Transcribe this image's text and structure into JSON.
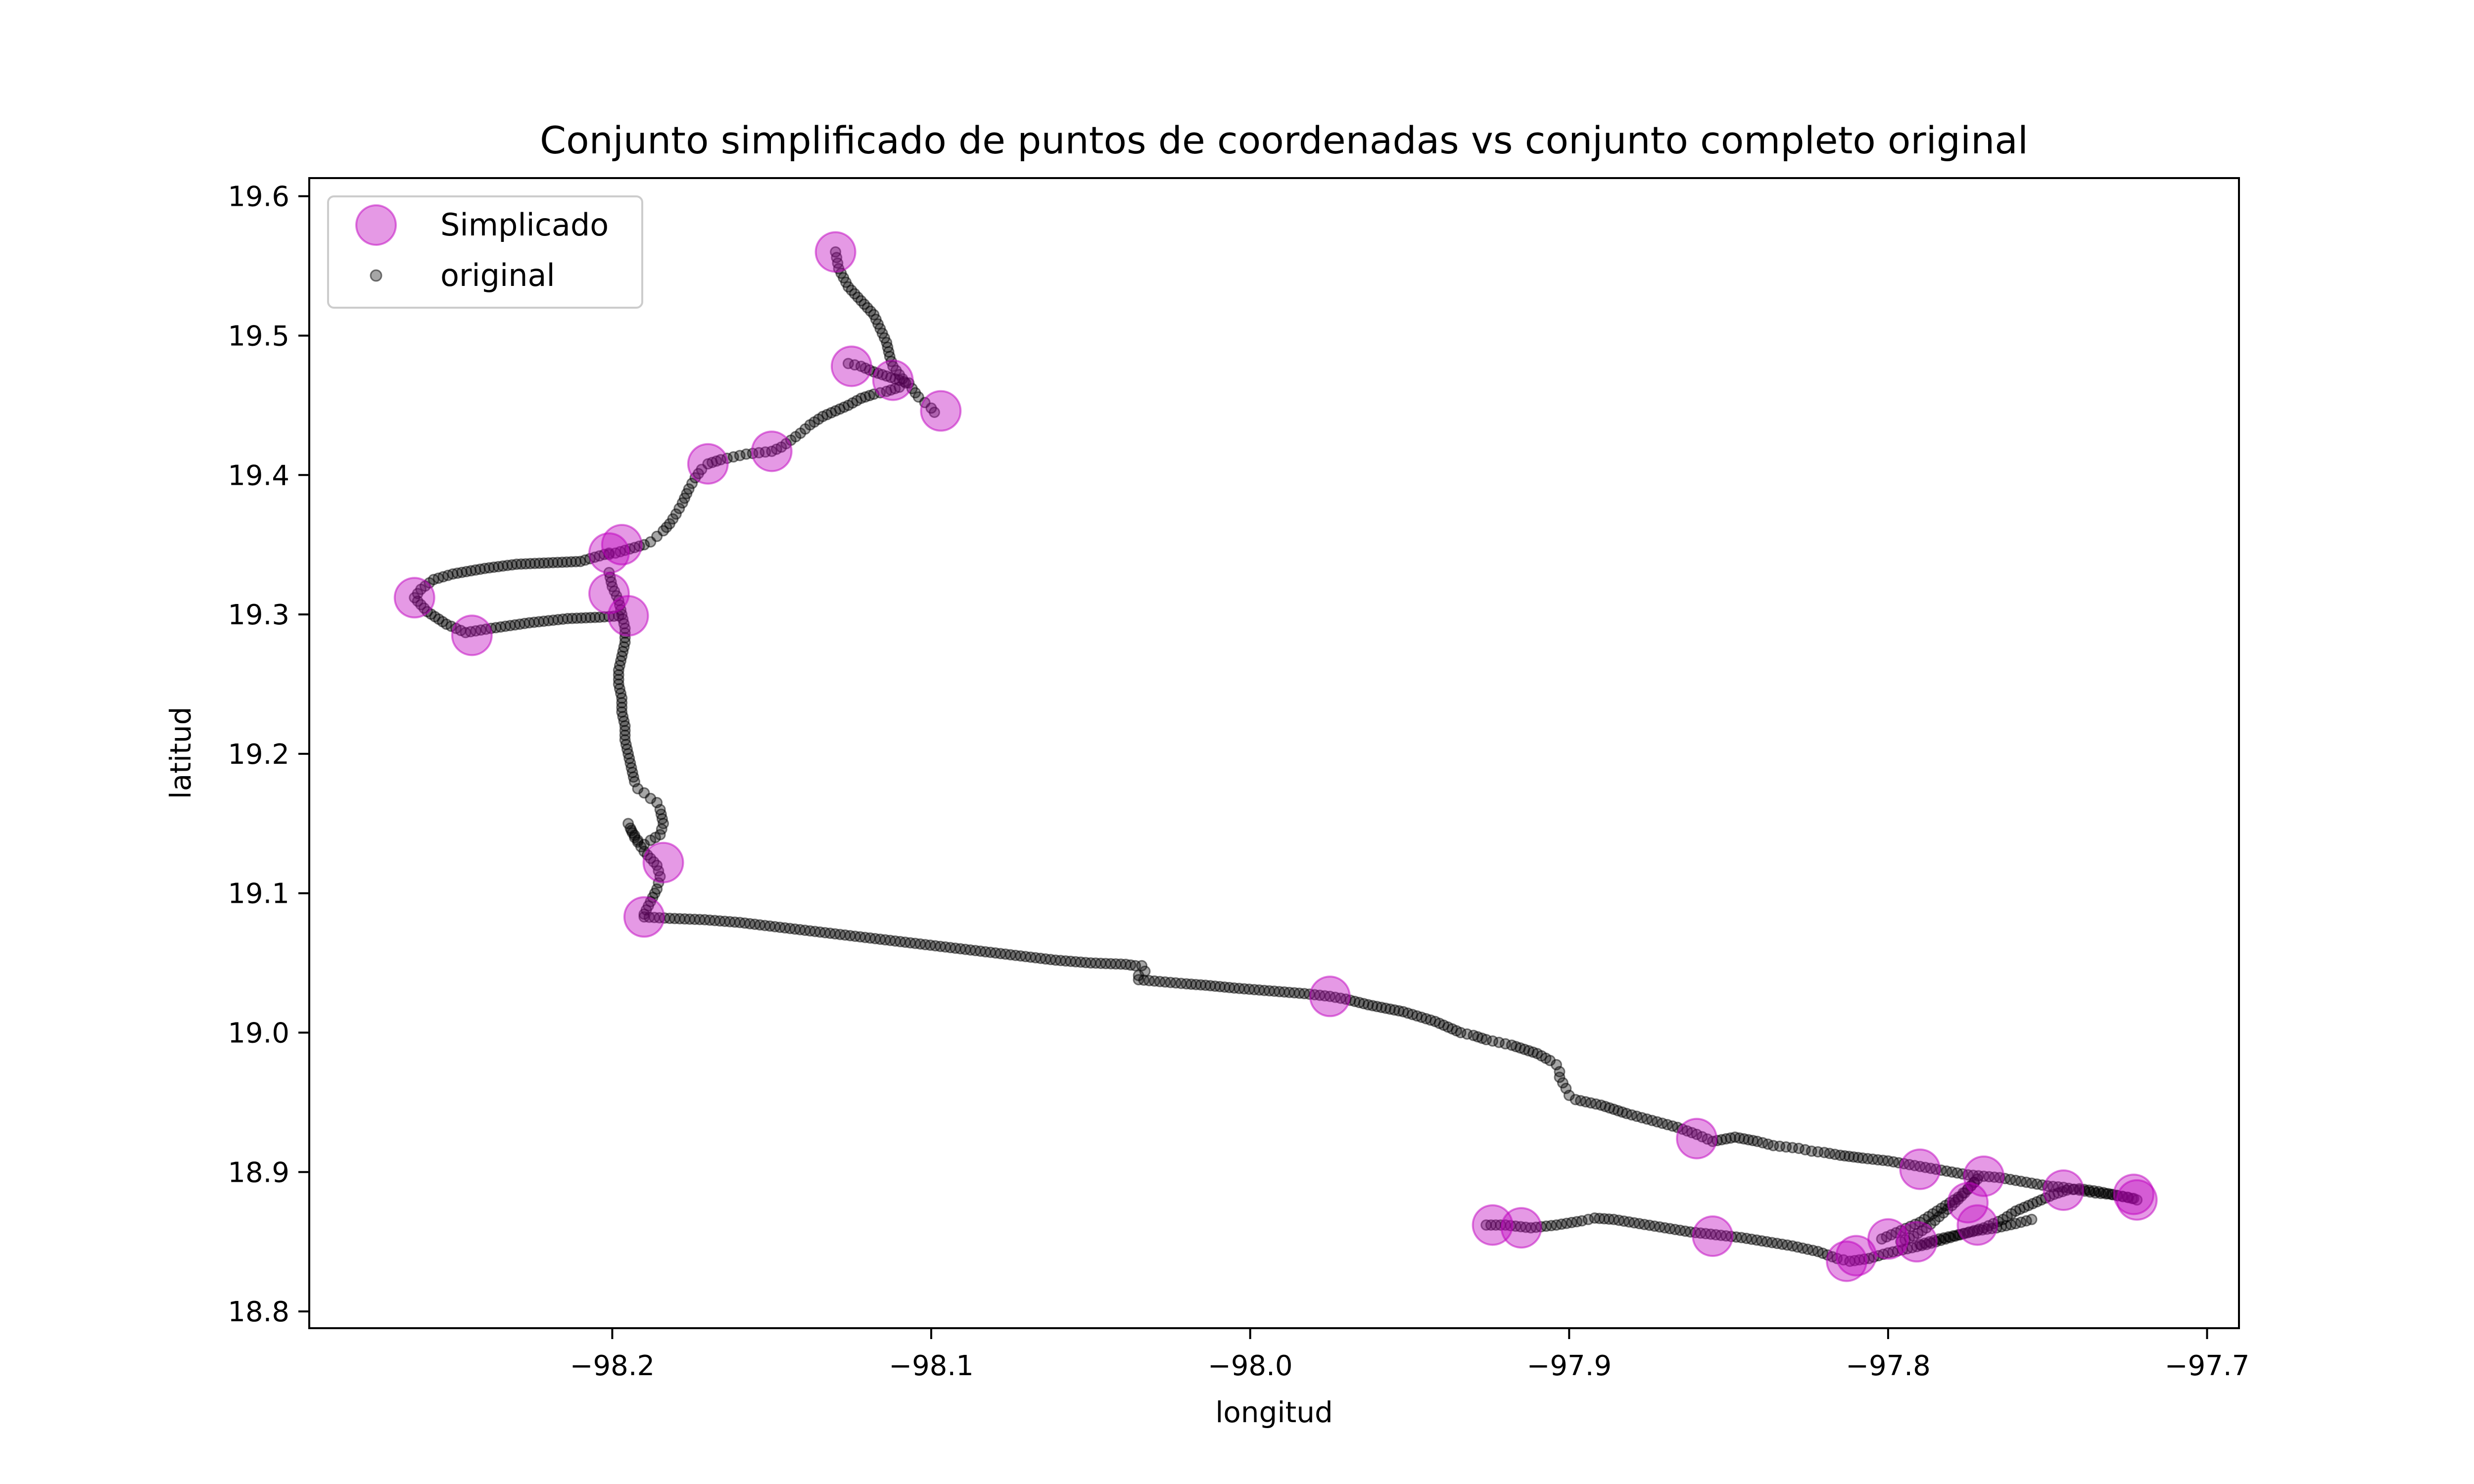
{
  "chart_data": {
    "type": "scatter",
    "title": "Conjunto simplificado de puntos de coordenadas vs conjunto completo original",
    "xlabel": "longitud",
    "ylabel": "latitud",
    "xlim": [
      -98.295,
      -97.69
    ],
    "ylim": [
      18.788,
      19.613
    ],
    "x_ticks": [
      -98.2,
      -98.1,
      -98.0,
      -97.9,
      -97.8,
      -97.7
    ],
    "x_tick_labels": [
      "−98.2",
      "−98.1",
      "−98.0",
      "−97.9",
      "−97.8",
      "−97.7"
    ],
    "y_ticks": [
      18.8,
      18.9,
      19.0,
      19.1,
      19.2,
      19.3,
      19.4,
      19.5,
      19.6
    ],
    "y_tick_labels": [
      "18.8",
      "18.9",
      "19.0",
      "19.1",
      "19.2",
      "19.3",
      "19.4",
      "19.5",
      "19.6"
    ],
    "legend_position": "top-left",
    "colors": {
      "simplified": "#bf00bf",
      "original": "#000000"
    },
    "series": [
      {
        "name": "Simplicado",
        "marker": "large-circle",
        "x": [
          -98.13,
          -98.125,
          -98.112,
          -98.097,
          -98.15,
          -98.17,
          -98.197,
          -98.201,
          -98.262,
          -98.201,
          -98.195,
          -98.244,
          -98.184,
          -98.19,
          -97.975,
          -97.924,
          -97.915,
          -97.855,
          -97.86,
          -97.813,
          -97.81,
          -97.8,
          -97.791,
          -97.79,
          -97.775,
          -97.772,
          -97.77,
          -97.745,
          -97.722,
          -97.723
        ],
        "y": [
          19.56,
          19.478,
          19.468,
          19.446,
          19.417,
          19.408,
          19.35,
          19.344,
          19.312,
          19.315,
          19.299,
          19.285,
          19.122,
          19.083,
          19.026,
          18.862,
          18.86,
          18.854,
          18.924,
          18.836,
          18.84,
          18.852,
          18.85,
          18.902,
          18.878,
          18.862,
          18.897,
          18.887,
          18.88,
          18.884
        ]
      },
      {
        "name": "original",
        "marker": "small-dot",
        "segments": [
          {
            "x": [
              -98.13,
              -98.129,
              -98.126,
              -98.122,
              -98.118,
              -98.116,
              -98.114,
              -98.113,
              -98.112,
              -98.11,
              -98.108,
              -98.106,
              -98.104,
              -98.102,
              -98.1,
              -98.099
            ],
            "y": [
              19.56,
              19.548,
              19.535,
              19.525,
              19.515,
              19.505,
              19.495,
              19.485,
              19.478,
              19.472,
              19.466,
              19.462,
              19.456,
              19.452,
              19.448,
              19.445
            ]
          },
          {
            "x": [
              -98.126,
              -98.122,
              -98.118,
              -98.114,
              -98.11,
              -98.107
            ],
            "y": [
              19.48,
              19.478,
              19.474,
              19.471,
              19.468,
              19.466
            ]
          },
          {
            "x": [
              -98.11,
              -98.114,
              -98.118,
              -98.122,
              -98.126,
              -98.13,
              -98.134,
              -98.138,
              -98.141,
              -98.144,
              -98.147,
              -98.15,
              -98.154,
              -98.158,
              -98.162,
              -98.166,
              -98.17,
              -98.172,
              -98.174,
              -98.176,
              -98.178,
              -98.18,
              -98.182,
              -98.184,
              -98.186,
              -98.188,
              -98.19,
              -98.193,
              -98.196,
              -98.199,
              -98.201
            ],
            "y": [
              19.463,
              19.46,
              19.458,
              19.455,
              19.45,
              19.446,
              19.442,
              19.436,
              19.43,
              19.425,
              19.42,
              19.417,
              19.416,
              19.415,
              19.413,
              19.411,
              19.408,
              19.404,
              19.398,
              19.39,
              19.38,
              19.372,
              19.365,
              19.36,
              19.356,
              19.352,
              19.35,
              19.348,
              19.346,
              19.344,
              19.343
            ]
          },
          {
            "x": [
              -98.201,
              -98.2,
              -98.198,
              -98.197,
              -98.196,
              -98.196,
              -98.197,
              -98.198,
              -98.198,
              -98.197,
              -98.197,
              -98.196,
              -98.196,
              -98.195,
              -98.194,
              -98.193,
              -98.192,
              -98.19,
              -98.188,
              -98.186,
              -98.185,
              -98.184,
              -98.185,
              -98.188,
              -98.19,
              -98.192,
              -98.194,
              -98.195,
              -98.193,
              -98.19,
              -98.188,
              -98.186,
              -98.185,
              -98.186,
              -98.188,
              -98.19
            ],
            "y": [
              19.33,
              19.32,
              19.31,
              19.3,
              19.29,
              19.28,
              19.27,
              19.26,
              19.25,
              19.24,
              19.23,
              19.22,
              19.21,
              19.2,
              19.19,
              19.18,
              19.175,
              19.172,
              19.168,
              19.165,
              19.16,
              19.15,
              19.142,
              19.138,
              19.135,
              19.138,
              19.145,
              19.15,
              19.14,
              19.13,
              19.125,
              19.12,
              19.112,
              19.103,
              19.094,
              19.085
            ]
          },
          {
            "x": [
              -98.201,
              -98.21,
              -98.22,
              -98.23,
              -98.24,
              -98.25,
              -98.256,
              -98.26,
              -98.262,
              -98.258,
              -98.252,
              -98.246,
              -98.238,
              -98.226,
              -98.214,
              -98.204,
              -98.198
            ],
            "y": [
              19.344,
              19.338,
              19.337,
              19.336,
              19.333,
              19.329,
              19.325,
              19.318,
              19.312,
              19.302,
              19.293,
              19.287,
              19.29,
              19.294,
              19.297,
              19.298,
              19.299
            ]
          },
          {
            "x": [
              -98.19,
              -98.182,
              -98.171,
              -98.16,
              -98.149,
              -98.138,
              -98.127,
              -98.116,
              -98.105,
              -98.094,
              -98.083,
              -98.072,
              -98.061,
              -98.05,
              -98.039,
              -98.036,
              -98.034,
              -98.033,
              -98.035,
              -98.035,
              -98.03,
              -98.025,
              -98.02,
              -98.014,
              -98.005,
              -97.994,
              -97.983,
              -97.975,
              -97.97,
              -97.963,
              -97.952,
              -97.942,
              -97.938,
              -97.934,
              -97.93,
              -97.926,
              -97.922,
              -97.918,
              -97.914,
              -97.91,
              -97.906,
              -97.904,
              -97.903,
              -97.903,
              -97.902,
              -97.901,
              -97.9,
              -97.898,
              -97.89,
              -97.882,
              -97.874,
              -97.866,
              -97.86,
              -97.855,
              -97.848,
              -97.841,
              -97.836,
              -97.832,
              -97.828,
              -97.824,
              -97.82,
              -97.815,
              -97.808,
              -97.8,
              -97.795,
              -97.79,
              -97.785,
              -97.78,
              -97.775,
              -97.77,
              -97.765,
              -97.76,
              -97.755,
              -97.75,
              -97.745,
              -97.74,
              -97.735,
              -97.73,
              -97.725,
              -97.722
            ],
            "y": [
              19.083,
              19.082,
              19.081,
              19.079,
              19.076,
              19.073,
              19.07,
              19.067,
              19.064,
              19.061,
              19.058,
              19.055,
              19.052,
              19.05,
              19.049,
              19.048,
              19.048,
              19.044,
              19.041,
              19.038,
              19.037,
              19.036,
              19.035,
              19.034,
              19.032,
              19.03,
              19.028,
              19.026,
              19.024,
              19.02,
              19.015,
              19.008,
              19.004,
              19.0,
              18.998,
              18.995,
              18.993,
              18.991,
              18.988,
              18.985,
              18.98,
              18.977,
              18.972,
              18.968,
              18.964,
              18.96,
              18.955,
              18.952,
              18.948,
              18.942,
              18.937,
              18.932,
              18.927,
              18.922,
              18.925,
              18.922,
              18.919,
              18.918,
              18.917,
              18.915,
              18.914,
              18.912,
              18.91,
              18.908,
              18.906,
              18.904,
              18.902,
              18.9,
              18.898,
              18.897,
              18.896,
              18.894,
              18.892,
              18.89,
              18.889,
              18.887,
              18.885,
              18.884,
              18.882,
              18.88
            ]
          },
          {
            "x": [
              -97.926,
              -97.92,
              -97.912,
              -97.904,
              -97.896,
              -97.892,
              -97.886,
              -97.878,
              -97.87,
              -97.862,
              -97.854,
              -97.846,
              -97.838,
              -97.83,
              -97.822,
              -97.816,
              -97.812,
              -97.806,
              -97.8,
              -97.794,
              -97.788,
              -97.782,
              -97.776,
              -97.77,
              -97.764,
              -97.76,
              -97.756,
              -97.752,
              -97.748,
              -97.744,
              -97.74,
              -97.734,
              -97.728,
              -97.723
            ],
            "y": [
              18.862,
              18.862,
              18.86,
              18.862,
              18.865,
              18.867,
              18.866,
              18.863,
              18.86,
              18.857,
              18.855,
              18.853,
              18.85,
              18.847,
              18.843,
              18.838,
              18.836,
              18.838,
              18.842,
              18.845,
              18.848,
              18.852,
              18.856,
              18.86,
              18.866,
              18.872,
              18.876,
              18.88,
              18.884,
              18.887,
              18.888,
              18.886,
              18.883,
              18.881
            ]
          },
          {
            "x": [
              -97.802,
              -97.796,
              -97.79,
              -97.786,
              -97.782,
              -97.778,
              -97.775,
              -97.772,
              -97.776,
              -97.78,
              -97.784,
              -97.788,
              -97.792,
              -97.796
            ],
            "y": [
              18.852,
              18.858,
              18.864,
              18.87,
              18.876,
              18.882,
              18.888,
              18.895,
              18.885,
              18.876,
              18.868,
              18.86,
              18.854,
              18.85
            ]
          },
          {
            "x": [
              -97.79,
              -97.784,
              -97.778,
              -97.772,
              -97.766,
              -97.76,
              -97.755
            ],
            "y": [
              18.848,
              18.852,
              18.855,
              18.858,
              18.86,
              18.863,
              18.866
            ]
          }
        ]
      }
    ]
  }
}
